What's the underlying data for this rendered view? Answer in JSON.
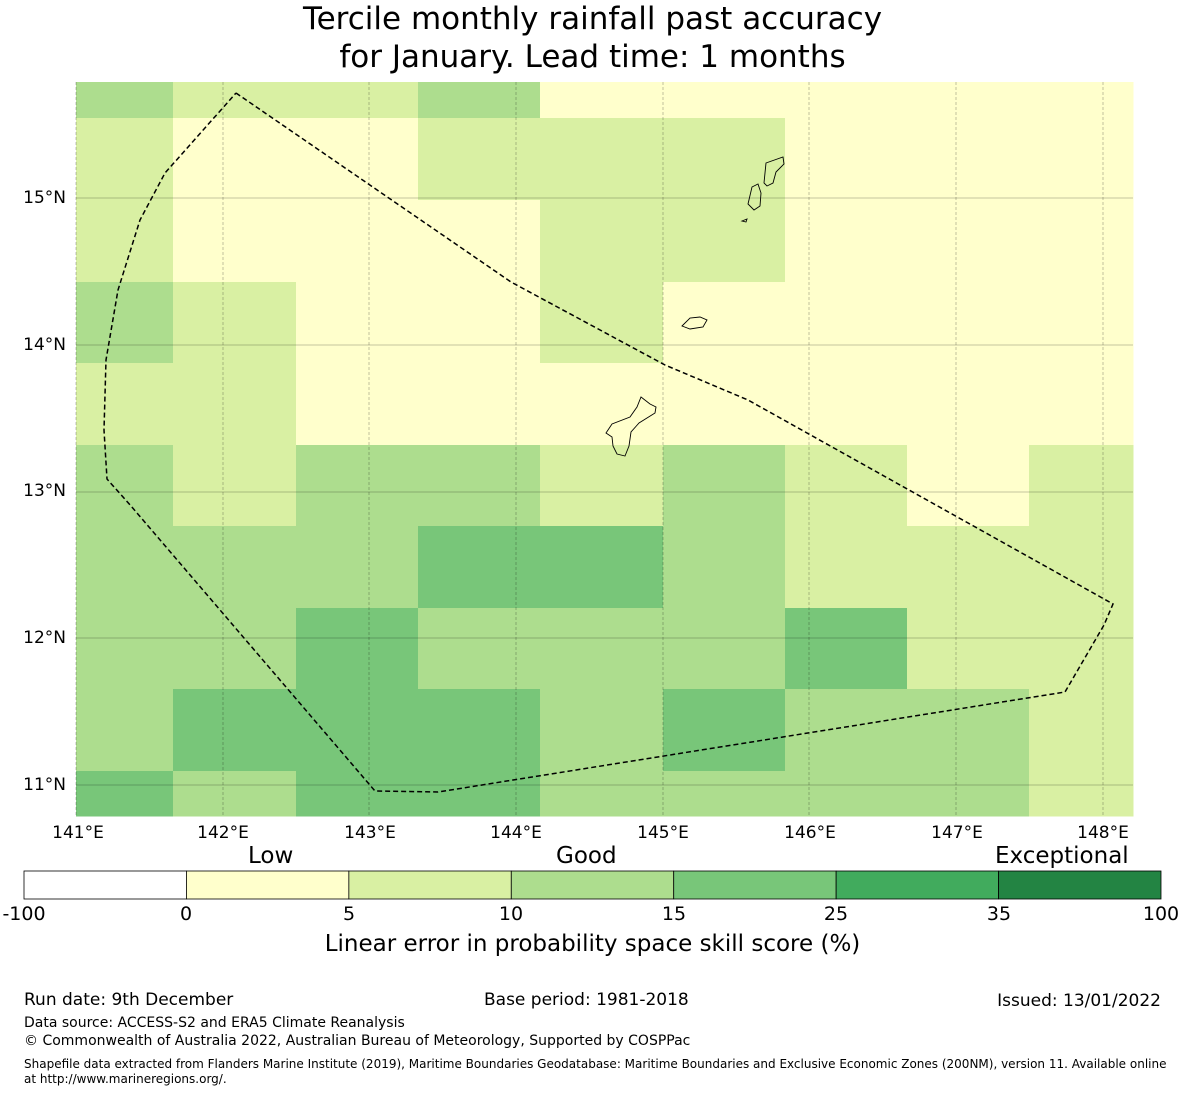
{
  "title": {
    "line1": "Tercile monthly rainfall past accuracy",
    "line2": "for January. Lead time: 1 months"
  },
  "map": {
    "lon_labels": [
      "141°E",
      "142°E",
      "143°E",
      "144°E",
      "145°E",
      "146°E",
      "147°E",
      "148°E"
    ],
    "lat_labels": [
      "15°N",
      "14°N",
      "13°N",
      "12°N",
      "11°N"
    ],
    "grid": [
      [
        "10-15",
        "5-10",
        "5-10",
        "10-15",
        "0-5",
        "0-5",
        "0-5",
        "0-5",
        "0-5"
      ],
      [
        "5-10",
        "0-5",
        "0-5",
        "5-10",
        "5-10",
        "5-10",
        "0-5",
        "0-5",
        "0-5"
      ],
      [
        "5-10",
        "0-5",
        "0-5",
        "0-5",
        "5-10",
        "5-10",
        "0-5",
        "0-5",
        "0-5"
      ],
      [
        "10-15",
        "5-10",
        "0-5",
        "0-5",
        "5-10",
        "0-5",
        "0-5",
        "0-5",
        "0-5"
      ],
      [
        "5-10",
        "5-10",
        "0-5",
        "0-5",
        "0-5",
        "0-5",
        "0-5",
        "0-5",
        "0-5"
      ],
      [
        "10-15",
        "5-10",
        "10-15",
        "10-15",
        "5-10",
        "10-15",
        "5-10",
        "0-5",
        "5-10"
      ],
      [
        "10-15",
        "10-15",
        "10-15",
        "15-25",
        "15-25",
        "10-15",
        "5-10",
        "5-10",
        "5-10"
      ],
      [
        "10-15",
        "10-15",
        "15-25",
        "10-15",
        "10-15",
        "10-15",
        "15-25",
        "5-10",
        "5-10"
      ],
      [
        "10-15",
        "15-25",
        "15-25",
        "15-25",
        "10-15",
        "15-25",
        "10-15",
        "10-15",
        "5-10"
      ],
      [
        "15-25",
        "10-15",
        "15-25",
        "15-25",
        "10-15",
        "10-15",
        "10-15",
        "10-15",
        "5-10"
      ]
    ]
  },
  "colorbar": {
    "categories": [
      "Low",
      "Good",
      "Exceptional"
    ],
    "ticks": [
      "-100",
      "0",
      "5",
      "10",
      "15",
      "25",
      "35",
      "100"
    ],
    "bins": [
      {
        "range": "-100-0",
        "color": "#ffffff"
      },
      {
        "range": "0-5",
        "color": "#ffffcc"
      },
      {
        "range": "5-10",
        "color": "#d9f0a3"
      },
      {
        "range": "10-15",
        "color": "#addd8e"
      },
      {
        "range": "15-25",
        "color": "#78c679"
      },
      {
        "range": "25-35",
        "color": "#41ab5d"
      },
      {
        "range": "35-100",
        "color": "#238443"
      }
    ],
    "title": "Linear error in probability space skill score (%)"
  },
  "footer": {
    "run_date": "Run date: 9th December",
    "base_period": "Base period: 1981-2018",
    "issued": "Issued: 13/01/2022",
    "data_source": "Data source: ACCESS-S2 and ERA5 Climate Reanalysis",
    "copyright": "© Commonwealth of Australia 2022, Australian Bureau of Meteorology, Supported by COSPPac",
    "shapefile": "Shapefile data extracted from Flanders Marine Institute (2019), Maritime Boundaries Geodatabase: Maritime Boundaries and Exclusive Economic Zones (200NM), version 11. Available online at http://www.marineregions.org/."
  }
}
